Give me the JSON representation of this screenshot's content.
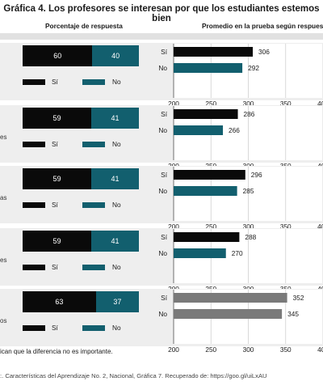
{
  "title": "Gráfica 4. Los profesores se interesan por que los estudiantes estemos bien",
  "left_header": "Porcentaje de respuesta",
  "right_header": "Promedio en la prueba según respuesta",
  "legend": {
    "si": "Sí",
    "no": "No"
  },
  "colors": {
    "si": "#0a0a0a",
    "no": "#125f6e",
    "not_important": "#7a7a7a"
  },
  "cut_labels": [
    "",
    "es",
    "as",
    "es",
    "os"
  ],
  "footnote": "ican que la diferencia no es importante.",
  "source": ":. Características del Aprendizaje No. 2, Nacional, Gráfica 7. Recuperado de: https://goo.gl/uiLxAU",
  "chart_data": [
    {
      "type": "bar",
      "percent": {
        "si": 60,
        "no": 40
      },
      "categories": [
        "Sí",
        "No"
      ],
      "values": [
        306,
        292
      ],
      "xlim": [
        200,
        400
      ],
      "xticks": [
        200,
        250,
        300,
        350,
        400
      ],
      "gray": false
    },
    {
      "type": "bar",
      "percent": {
        "si": 59,
        "no": 41
      },
      "categories": [
        "Sí",
        "No"
      ],
      "values": [
        286,
        266
      ],
      "xlim": [
        200,
        400
      ],
      "xticks": [
        200,
        250,
        300,
        350,
        400
      ],
      "gray": false
    },
    {
      "type": "bar",
      "percent": {
        "si": 59,
        "no": 41
      },
      "categories": [
        "Sí",
        "No"
      ],
      "values": [
        296,
        285
      ],
      "xlim": [
        200,
        400
      ],
      "xticks": [
        200,
        250,
        300,
        350,
        400
      ],
      "gray": false
    },
    {
      "type": "bar",
      "percent": {
        "si": 59,
        "no": 41
      },
      "categories": [
        "Sí",
        "No"
      ],
      "values": [
        288,
        270
      ],
      "xlim": [
        200,
        400
      ],
      "xticks": [
        200,
        250,
        300,
        350,
        400
      ],
      "gray": false
    },
    {
      "type": "bar",
      "percent": {
        "si": 63,
        "no": 37
      },
      "categories": [
        "Sí",
        "No"
      ],
      "values": [
        352,
        345
      ],
      "xlim": [
        200,
        400
      ],
      "xticks": [
        200,
        250,
        300,
        350,
        400
      ],
      "gray": true
    }
  ]
}
